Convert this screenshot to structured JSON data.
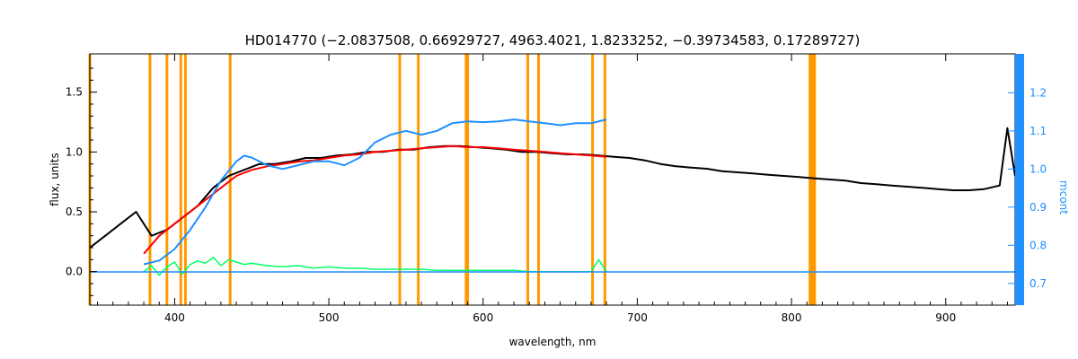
{
  "chart_data": {
    "type": "line",
    "title": "HD014770    (−2.0837508, 0.66929727, 4963.4021, 1.8233252, −0.39734583, 0.17289727)",
    "xlabel": "wavelength, nm",
    "ylabel": "flux, units",
    "y2label": "mcont",
    "xlim": [
      345,
      945
    ],
    "ylim": [
      -0.28,
      1.82
    ],
    "y2lim": [
      0.643,
      1.302
    ],
    "x_ticks": [
      400,
      500,
      600,
      700,
      800,
      900
    ],
    "y_ticks": [
      0.0,
      0.5,
      1.0,
      1.5
    ],
    "y2_ticks": [
      0.7,
      0.8,
      0.9,
      1.0,
      1.1,
      1.2
    ],
    "y_tick_labels": [
      "0.0",
      "0.5",
      "1.0",
      "1.5"
    ],
    "y2_tick_labels": [
      "0.7",
      "0.8",
      "0.9",
      "1.0",
      "1.1",
      "1.2"
    ],
    "colors": {
      "observed": "#000000",
      "model": "#ff0000",
      "residual": "#00ff66",
      "continuum": "#1e90ff",
      "masks": "#ff9900"
    },
    "mask_lines": [
      345,
      384,
      395,
      404,
      407,
      436,
      546,
      558,
      589,
      590,
      629,
      636,
      671,
      679,
      812,
      813,
      814,
      815
    ],
    "series": [
      {
        "key": "observed",
        "x": [
          345,
          355,
          365,
          375,
          385,
          395,
          405,
          415,
          425,
          435,
          445,
          455,
          465,
          475,
          485,
          495,
          505,
          515,
          525,
          535,
          545,
          555,
          565,
          575,
          585,
          595,
          605,
          615,
          625,
          635,
          645,
          655,
          665,
          675,
          685,
          695,
          705,
          715,
          725,
          735,
          745,
          755,
          765,
          775,
          785,
          795,
          805,
          815,
          825,
          835,
          845,
          855,
          865,
          875,
          885,
          895,
          905,
          915,
          925,
          935,
          940,
          945
        ],
        "y": [
          0.2,
          0.3,
          0.4,
          0.5,
          0.3,
          0.35,
          0.45,
          0.55,
          0.7,
          0.8,
          0.85,
          0.9,
          0.9,
          0.92,
          0.95,
          0.95,
          0.97,
          0.98,
          1.0,
          1.0,
          1.02,
          1.02,
          1.04,
          1.05,
          1.05,
          1.04,
          1.03,
          1.02,
          1.0,
          1.0,
          0.99,
          0.98,
          0.98,
          0.97,
          0.96,
          0.95,
          0.93,
          0.9,
          0.88,
          0.87,
          0.86,
          0.84,
          0.83,
          0.82,
          0.81,
          0.8,
          0.79,
          0.78,
          0.77,
          0.76,
          0.74,
          0.73,
          0.72,
          0.71,
          0.7,
          0.69,
          0.68,
          0.68,
          0.69,
          0.72,
          1.2,
          0.8
        ]
      },
      {
        "key": "model",
        "x": [
          380,
          390,
          400,
          410,
          420,
          430,
          440,
          450,
          460,
          470,
          480,
          490,
          500,
          510,
          520,
          530,
          540,
          550,
          560,
          570,
          580,
          590,
          600,
          610,
          620,
          630,
          640,
          650,
          660,
          670,
          680
        ],
        "y": [
          0.15,
          0.3,
          0.4,
          0.5,
          0.6,
          0.7,
          0.8,
          0.85,
          0.88,
          0.9,
          0.92,
          0.93,
          0.95,
          0.97,
          0.98,
          1.0,
          1.01,
          1.02,
          1.03,
          1.04,
          1.05,
          1.04,
          1.04,
          1.03,
          1.02,
          1.01,
          1.0,
          0.99,
          0.98,
          0.97,
          0.96
        ]
      },
      {
        "key": "residual",
        "x": [
          380,
          385,
          390,
          395,
          400,
          405,
          410,
          415,
          420,
          425,
          430,
          435,
          440,
          445,
          450,
          460,
          470,
          480,
          490,
          500,
          510,
          520,
          530,
          540,
          550,
          560,
          570,
          580,
          590,
          600,
          610,
          620,
          630,
          640,
          650,
          660,
          670,
          675,
          680
        ],
        "y": [
          0.0,
          0.05,
          -0.03,
          0.04,
          0.08,
          -0.02,
          0.06,
          0.09,
          0.07,
          0.12,
          0.05,
          0.1,
          0.08,
          0.06,
          0.07,
          0.05,
          0.04,
          0.05,
          0.03,
          0.04,
          0.03,
          0.03,
          0.02,
          0.02,
          0.02,
          0.02,
          0.01,
          0.01,
          0.01,
          0.01,
          0.01,
          0.01,
          0.0,
          0.0,
          0.0,
          0.0,
          0.0,
          0.1,
          0.0
        ]
      },
      {
        "key": "continuum",
        "axis": "y2",
        "x": [
          380,
          390,
          400,
          410,
          420,
          430,
          440,
          445,
          450,
          460,
          470,
          480,
          490,
          500,
          510,
          520,
          530,
          540,
          550,
          560,
          570,
          580,
          590,
          600,
          610,
          620,
          630,
          640,
          650,
          660,
          670,
          680
        ],
        "y": [
          0.75,
          0.76,
          0.79,
          0.84,
          0.9,
          0.97,
          1.02,
          1.035,
          1.03,
          1.01,
          1.0,
          1.01,
          1.02,
          1.02,
          1.01,
          1.03,
          1.07,
          1.09,
          1.1,
          1.09,
          1.1,
          1.12,
          1.125,
          1.123,
          1.125,
          1.13,
          1.125,
          1.12,
          1.115,
          1.12,
          1.12,
          1.13
        ]
      },
      {
        "key": "continuum_flat",
        "axis": "y2",
        "x": [
          345,
          380,
          680,
          700,
          800,
          900,
          945
        ],
        "y": [
          0.73,
          0.73,
          0.73,
          0.73,
          0.73,
          0.73,
          0.73
        ]
      }
    ]
  }
}
